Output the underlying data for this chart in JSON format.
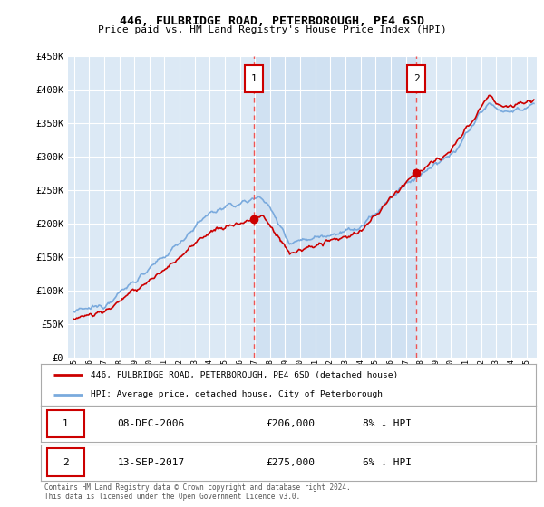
{
  "title": "446, FULBRIDGE ROAD, PETERBOROUGH, PE4 6SD",
  "subtitle": "Price paid vs. HM Land Registry's House Price Index (HPI)",
  "ylim": [
    0,
    450000
  ],
  "yticks": [
    0,
    50000,
    100000,
    150000,
    200000,
    250000,
    300000,
    350000,
    400000,
    450000
  ],
  "xlim_start": 1994.6,
  "xlim_end": 2025.7,
  "background_color": "#dce9f5",
  "grid_color": "#ffffff",
  "sale1_x": 2006.94,
  "sale1_y": 206000,
  "sale1_label": "1",
  "sale1_date": "08-DEC-2006",
  "sale1_price": "£206,000",
  "sale1_hpi": "8% ↓ HPI",
  "sale2_x": 2017.71,
  "sale2_y": 275000,
  "sale2_label": "2",
  "sale2_date": "13-SEP-2017",
  "sale2_price": "£275,000",
  "sale2_hpi": "6% ↓ HPI",
  "legend_label_red": "446, FULBRIDGE ROAD, PETERBOROUGH, PE4 6SD (detached house)",
  "legend_label_blue": "HPI: Average price, detached house, City of Peterborough",
  "footer": "Contains HM Land Registry data © Crown copyright and database right 2024.\nThis data is licensed under the Open Government Licence v3.0.",
  "line_red_color": "#cc0000",
  "line_blue_color": "#7aaadd",
  "annotation_box_color": "#cc0000",
  "vline_color": "#ee5555",
  "shade_color": "#c8dcf0"
}
